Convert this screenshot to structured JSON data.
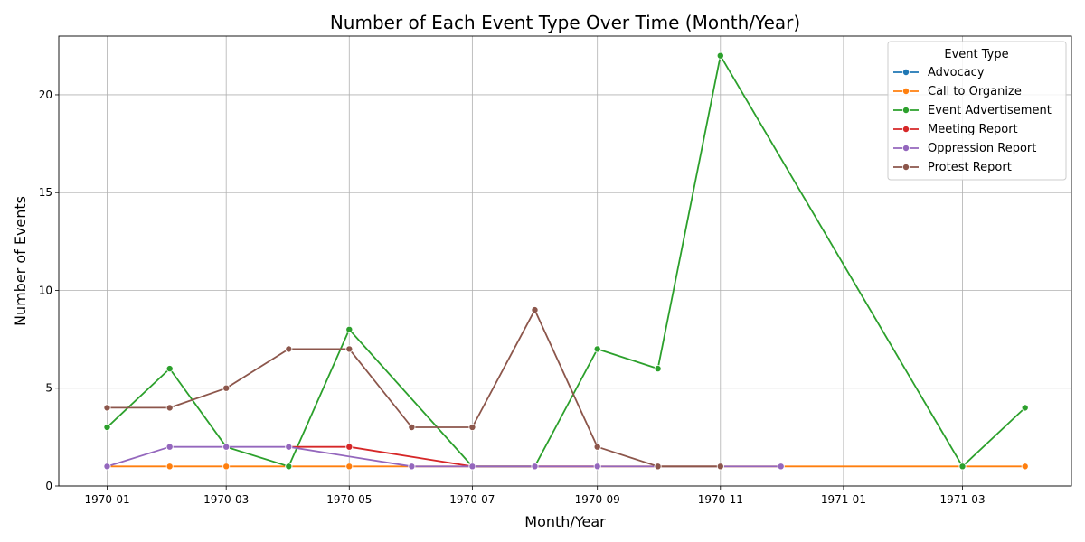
{
  "chart_data": {
    "type": "line",
    "title": "Number of Each Event Type Over Time (Month/Year)",
    "xlabel": "Month/Year",
    "ylabel": "Number of Events",
    "x_ticks": [
      "1970-01",
      "1970-03",
      "1970-05",
      "1970-07",
      "1970-09",
      "1970-11",
      "1971-01",
      "1971-03"
    ],
    "y_ticks": [
      0,
      5,
      10,
      15,
      20
    ],
    "ylim": [
      0,
      23
    ],
    "xlim": [
      "1969-12-08",
      "1971-04-24"
    ],
    "grid": true,
    "legend": {
      "title": "Event Type",
      "placement": "top-right"
    },
    "series": [
      {
        "name": "Advocacy",
        "color": "#1f77b4",
        "points": [
          [
            "1970-02-01",
            1
          ]
        ]
      },
      {
        "name": "Call to Organize",
        "color": "#ff7f0e",
        "points": [
          [
            "1970-01-01",
            1
          ],
          [
            "1970-02-01",
            1
          ],
          [
            "1970-03-01",
            1
          ],
          [
            "1970-04-01",
            1
          ],
          [
            "1970-05-01",
            1
          ],
          [
            "1970-06-01",
            1
          ],
          [
            "1970-07-01",
            1
          ],
          [
            "1970-08-01",
            1
          ],
          [
            "1970-09-01",
            1
          ],
          [
            "1970-10-01",
            1
          ],
          [
            "1970-11-01",
            1
          ],
          [
            "1970-12-01",
            1
          ],
          [
            "1971-03-01",
            1
          ],
          [
            "1971-04-01",
            1
          ]
        ]
      },
      {
        "name": "Event Advertisement",
        "color": "#2ca02c",
        "points": [
          [
            "1970-01-01",
            3
          ],
          [
            "1970-02-01",
            6
          ],
          [
            "1970-03-01",
            2
          ],
          [
            "1970-04-01",
            1
          ],
          [
            "1970-05-01",
            8
          ],
          [
            "1970-07-01",
            1
          ],
          [
            "1970-08-01",
            1
          ],
          [
            "1970-09-01",
            7
          ],
          [
            "1970-10-01",
            6
          ],
          [
            "1970-11-01",
            22
          ],
          [
            "1971-03-01",
            1
          ],
          [
            "1971-04-01",
            4
          ]
        ]
      },
      {
        "name": "Meeting Report",
        "color": "#d62728",
        "points": [
          [
            "1970-04-01",
            2
          ],
          [
            "1970-05-01",
            2
          ],
          [
            "1970-07-01",
            1
          ],
          [
            "1970-09-01",
            1
          ]
        ]
      },
      {
        "name": "Oppression Report",
        "color": "#9467bd",
        "points": [
          [
            "1970-01-01",
            1
          ],
          [
            "1970-02-01",
            2
          ],
          [
            "1970-03-01",
            2
          ],
          [
            "1970-04-01",
            2
          ],
          [
            "1970-06-01",
            1
          ],
          [
            "1970-07-01",
            1
          ],
          [
            "1970-08-01",
            1
          ],
          [
            "1970-09-01",
            1
          ],
          [
            "1970-10-01",
            1
          ],
          [
            "1970-11-01",
            1
          ],
          [
            "1970-12-01",
            1
          ]
        ]
      },
      {
        "name": "Protest Report",
        "color": "#8c564b",
        "points": [
          [
            "1970-01-01",
            4
          ],
          [
            "1970-02-01",
            4
          ],
          [
            "1970-03-01",
            5
          ],
          [
            "1970-04-01",
            7
          ],
          [
            "1970-05-01",
            7
          ],
          [
            "1970-06-01",
            3
          ],
          [
            "1970-07-01",
            3
          ],
          [
            "1970-08-01",
            9
          ],
          [
            "1970-09-01",
            2
          ],
          [
            "1970-10-01",
            1
          ],
          [
            "1970-11-01",
            1
          ]
        ]
      }
    ]
  }
}
